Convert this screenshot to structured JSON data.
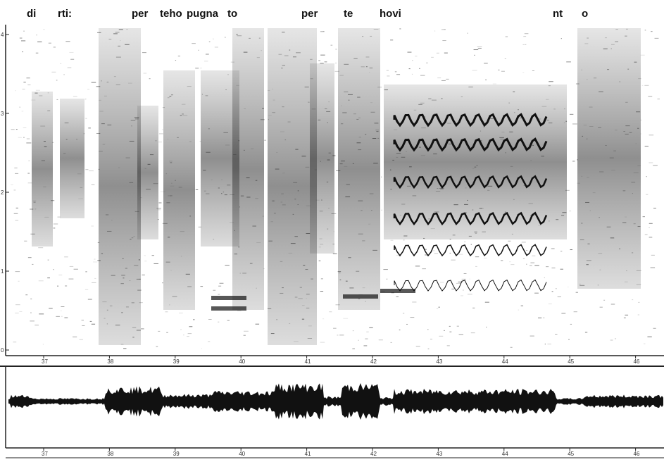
{
  "lyrics": [
    "di",
    "rti:",
    "per",
    "teho",
    "pugna",
    "to",
    "per",
    "te",
    "hovi",
    "nt",
    "o"
  ],
  "time_ticks": [
    37,
    38,
    39,
    40,
    41,
    42,
    43,
    44,
    45,
    46
  ],
  "freq_ticks": [
    4,
    3,
    2,
    1,
    0
  ]
}
